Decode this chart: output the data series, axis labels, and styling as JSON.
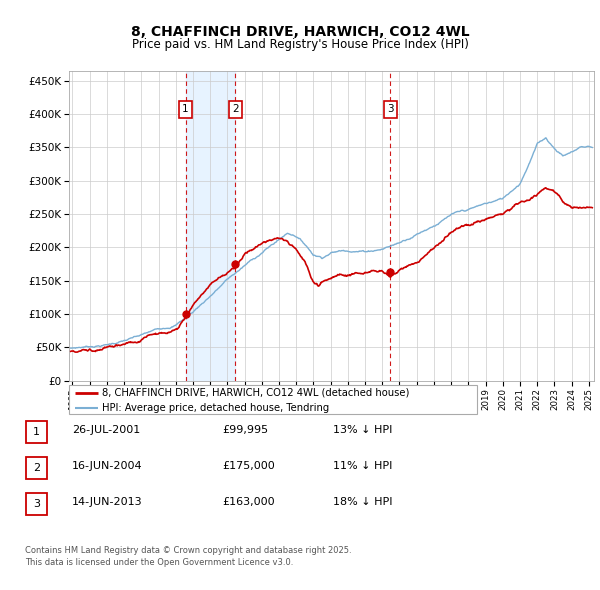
{
  "title": "8, CHAFFINCH DRIVE, HARWICH, CO12 4WL",
  "subtitle": "Price paid vs. HM Land Registry's House Price Index (HPI)",
  "ylabel_ticks": [
    "£0",
    "£50K",
    "£100K",
    "£150K",
    "£200K",
    "£250K",
    "£300K",
    "£350K",
    "£400K",
    "£450K"
  ],
  "ytick_values": [
    0,
    50000,
    100000,
    150000,
    200000,
    250000,
    300000,
    350000,
    400000,
    450000
  ],
  "ylim": [
    0,
    465000
  ],
  "xlim_start": 1994.8,
  "xlim_end": 2025.3,
  "sale_dates": [
    2001.57,
    2004.46,
    2013.46
  ],
  "sale_labels": [
    "1",
    "2",
    "3"
  ],
  "sale_prices": [
    99995,
    175000,
    163000
  ],
  "sale_dates_str": [
    "26-JUL-2001",
    "16-JUN-2004",
    "14-JUN-2013"
  ],
  "sale_pct": [
    "13%",
    "11%",
    "18%"
  ],
  "legend_label_red": "8, CHAFFINCH DRIVE, HARWICH, CO12 4WL (detached house)",
  "legend_label_blue": "HPI: Average price, detached house, Tendring",
  "footer": "Contains HM Land Registry data © Crown copyright and database right 2025.\nThis data is licensed under the Open Government Licence v3.0.",
  "red_color": "#cc0000",
  "blue_color": "#7bafd4",
  "vline_color": "#cc0000",
  "grid_color": "#cccccc",
  "shade_color": "#ddeeff",
  "background_color": "#ffffff"
}
